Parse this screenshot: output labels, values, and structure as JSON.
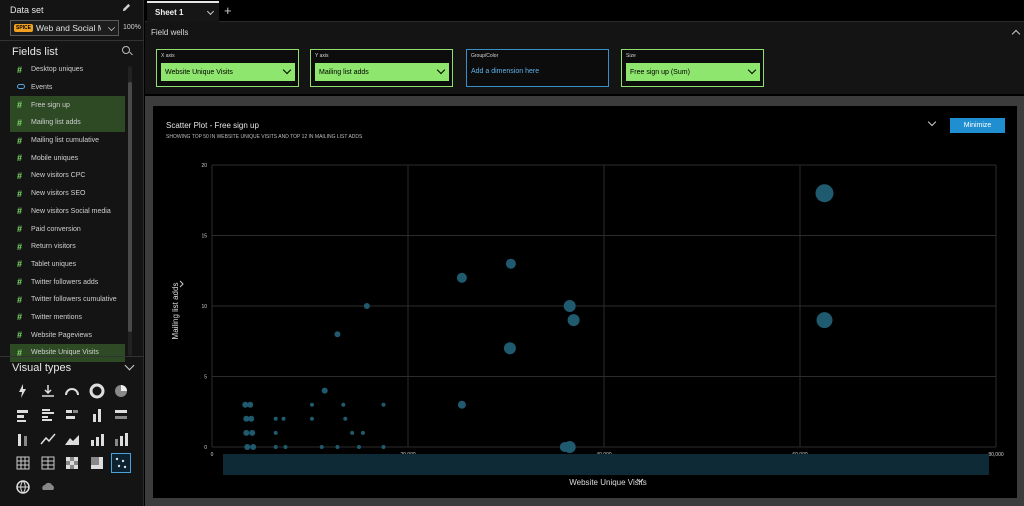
{
  "dataset": {
    "title": "Data set",
    "badge": "SPICE",
    "name": "Web and Social Media Analytics",
    "zoom": "100%"
  },
  "fields_list": {
    "title": "Fields list",
    "items": [
      {
        "label": "Desktop uniques",
        "kind": "measure",
        "selected": false
      },
      {
        "label": "Events",
        "kind": "dimension",
        "selected": false
      },
      {
        "label": "Free sign up",
        "kind": "measure",
        "selected": true
      },
      {
        "label": "Mailing list adds",
        "kind": "measure",
        "selected": true
      },
      {
        "label": "Mailing list cumulative",
        "kind": "measure",
        "selected": false
      },
      {
        "label": "Mobile uniques",
        "kind": "measure",
        "selected": false
      },
      {
        "label": "New visitors CPC",
        "kind": "measure",
        "selected": false
      },
      {
        "label": "New visitors SEO",
        "kind": "measure",
        "selected": false
      },
      {
        "label": "New visitors Social media",
        "kind": "measure",
        "selected": false
      },
      {
        "label": "Paid conversion",
        "kind": "measure",
        "selected": false
      },
      {
        "label": "Return visitors",
        "kind": "measure",
        "selected": false
      },
      {
        "label": "Tablet uniques",
        "kind": "measure",
        "selected": false
      },
      {
        "label": "Twitter followers adds",
        "kind": "measure",
        "selected": false
      },
      {
        "label": "Twitter followers cumulative",
        "kind": "measure",
        "selected": false
      },
      {
        "label": "Twitter mentions",
        "kind": "measure",
        "selected": false
      },
      {
        "label": "Website Pageviews",
        "kind": "measure",
        "selected": false
      },
      {
        "label": "Website Unique Visits",
        "kind": "measure",
        "selected": true
      }
    ]
  },
  "visual_types": {
    "title": "Visual types",
    "items": [
      "kpi-icon",
      "waterfall-icon",
      "gauge-icon",
      "donut-icon",
      "pie-icon",
      "horizontal-bar-icon",
      "clustered-horizontal-bar-icon",
      "stacked-horizontal-bar-icon",
      "vertical-bar-icon",
      "stacked-100-horizontal-bar-icon",
      "stacked-vertical-bar-icon",
      "line-chart-icon",
      "area-chart-icon",
      "combo-bar-icon",
      "combo-stacked-bar-icon",
      "pivot-table-icon",
      "table-icon",
      "heat-map-icon",
      "tree-map-icon",
      "scatter-plot-icon",
      "geo-map-icon",
      "word-cloud-icon"
    ],
    "selected": "scatter-plot-icon"
  },
  "sheet_tab": {
    "label": "Sheet 1",
    "add": "+"
  },
  "field_wells": {
    "title": "Field wells",
    "wells": [
      {
        "label": "X axis",
        "value": "Website Unique Visits"
      },
      {
        "label": "Y axis",
        "value": "Mailing list adds"
      },
      {
        "label": "Group/Color",
        "value": "Add a dimension here"
      },
      {
        "label": "Size",
        "value": "Free sign up (Sum)"
      }
    ]
  },
  "visual": {
    "title": "Scatter Plot - Free sign up",
    "subtitle": "SHOWING TOP 50 IN WEBSITE UNIQUE VISITS AND TOP 12 IN MAILING LIST ADDS",
    "minimize_label": "Minimize"
  },
  "chart_data": {
    "type": "scatter",
    "xlabel": "Website Unique Visits",
    "ylabel": "Mailing list adds",
    "xlim": [
      0,
      80000
    ],
    "ylim": [
      0,
      20
    ],
    "xticks": [
      0,
      20000,
      40000,
      60000,
      80000
    ],
    "xtick_labels": [
      "0",
      "20,000",
      "40,000",
      "60,000",
      "80,000"
    ],
    "yticks": [
      0,
      5,
      10,
      15,
      20
    ],
    "ytick_labels": [
      "0",
      "5",
      "10",
      "15",
      "20"
    ],
    "grid": true,
    "color": "#1f5a6e",
    "points": [
      {
        "x": 62500,
        "y": 18,
        "size": 9
      },
      {
        "x": 62500,
        "y": 9,
        "size": 8
      },
      {
        "x": 30500,
        "y": 13,
        "size": 5
      },
      {
        "x": 25500,
        "y": 12,
        "size": 5
      },
      {
        "x": 36500,
        "y": 10,
        "size": 6
      },
      {
        "x": 36900,
        "y": 9,
        "size": 6
      },
      {
        "x": 30400,
        "y": 7,
        "size": 6
      },
      {
        "x": 36500,
        "y": 0,
        "size": 6
      },
      {
        "x": 36000,
        "y": 0,
        "size": 5
      },
      {
        "x": 25500,
        "y": 3,
        "size": 4
      },
      {
        "x": 15800,
        "y": 10,
        "size": 3
      },
      {
        "x": 12800,
        "y": 8,
        "size": 3
      },
      {
        "x": 11500,
        "y": 4,
        "size": 3
      },
      {
        "x": 3400,
        "y": 3,
        "size": 3
      },
      {
        "x": 3900,
        "y": 3,
        "size": 3
      },
      {
        "x": 3500,
        "y": 2,
        "size": 3
      },
      {
        "x": 4000,
        "y": 2,
        "size": 3
      },
      {
        "x": 3500,
        "y": 1,
        "size": 3
      },
      {
        "x": 4100,
        "y": 1,
        "size": 3
      },
      {
        "x": 3600,
        "y": 0,
        "size": 3
      },
      {
        "x": 4200,
        "y": 0,
        "size": 3
      },
      {
        "x": 6500,
        "y": 2,
        "size": 2
      },
      {
        "x": 7300,
        "y": 2,
        "size": 2
      },
      {
        "x": 6500,
        "y": 1,
        "size": 2
      },
      {
        "x": 6500,
        "y": 0,
        "size": 2
      },
      {
        "x": 7500,
        "y": 0,
        "size": 2
      },
      {
        "x": 10200,
        "y": 3,
        "size": 2
      },
      {
        "x": 10200,
        "y": 2,
        "size": 2
      },
      {
        "x": 11200,
        "y": 0,
        "size": 2
      },
      {
        "x": 12800,
        "y": 0,
        "size": 2
      },
      {
        "x": 13400,
        "y": 3,
        "size": 2
      },
      {
        "x": 13600,
        "y": 2,
        "size": 2
      },
      {
        "x": 14300,
        "y": 1,
        "size": 2
      },
      {
        "x": 15400,
        "y": 1,
        "size": 2
      },
      {
        "x": 15000,
        "y": 0,
        "size": 2
      },
      {
        "x": 17500,
        "y": 3,
        "size": 2
      },
      {
        "x": 17500,
        "y": 0,
        "size": 2
      }
    ]
  }
}
